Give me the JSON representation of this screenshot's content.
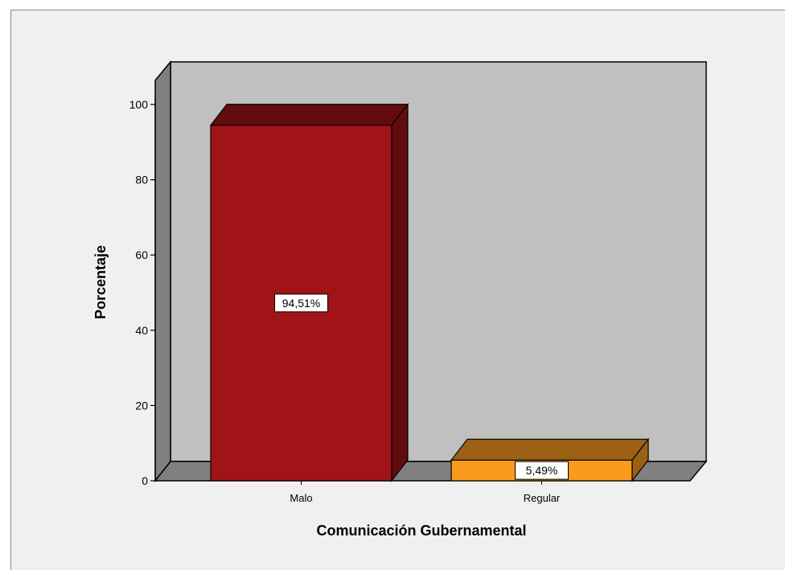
{
  "chart_data": {
    "type": "bar",
    "categories": [
      "Malo",
      "Regular"
    ],
    "values": [
      94.51,
      5.49
    ],
    "data_labels": [
      "94,51%",
      "5,49%"
    ],
    "title": "",
    "xlabel": "Comunicación Gubernamental",
    "ylabel": "Porcentaje",
    "ylim": [
      0,
      100
    ],
    "yticks": [
      "0",
      "20",
      "40",
      "60",
      "80",
      "100"
    ],
    "colors": {
      "Malo": "#a01418",
      "Regular": "#fa9b1e"
    }
  }
}
